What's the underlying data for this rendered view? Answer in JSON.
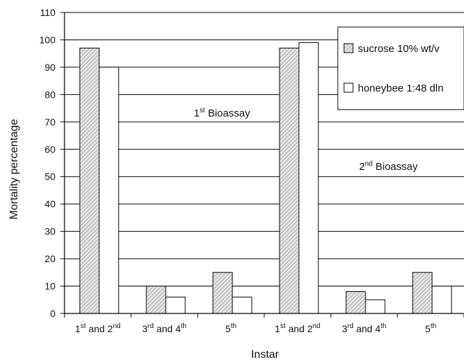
{
  "chart_data": {
    "type": "bar",
    "xlabel": "Instar",
    "ylabel": "Mortality percentage",
    "ylim": [
      0,
      110
    ],
    "yticks": [
      0,
      10,
      20,
      30,
      40,
      50,
      60,
      70,
      80,
      90,
      100,
      110
    ],
    "grid": true,
    "legend_position": "top-right",
    "categories": [
      {
        "base": "1",
        "sup1": "st",
        "mid": " and 2",
        "sup2": "nd"
      },
      {
        "base": "3",
        "sup1": "rd",
        "mid": " and 4",
        "sup2": "th"
      },
      {
        "base": "5",
        "sup1": "th",
        "mid": "",
        "sup2": ""
      },
      {
        "base": "1",
        "sup1": "st",
        "mid": " and 2",
        "sup2": "nd"
      },
      {
        "base": "3",
        "sup1": "rd",
        "mid": " and 4",
        "sup2": "th"
      },
      {
        "base": "5",
        "sup1": "th",
        "mid": "",
        "sup2": ""
      }
    ],
    "series": [
      {
        "name": "sucrose 10% wt/v",
        "pattern": "hatched",
        "values": [
          97,
          10,
          15,
          97,
          8,
          15
        ]
      },
      {
        "name": "honeybee 1:48 dln",
        "pattern": "white",
        "values": [
          90,
          6,
          6,
          99,
          5,
          10
        ]
      }
    ],
    "annotations": [
      {
        "base": "1",
        "sup": "st",
        "rest": " Bioassay"
      },
      {
        "base": "2",
        "sup": "nd",
        "rest": " Bioassay"
      }
    ]
  }
}
